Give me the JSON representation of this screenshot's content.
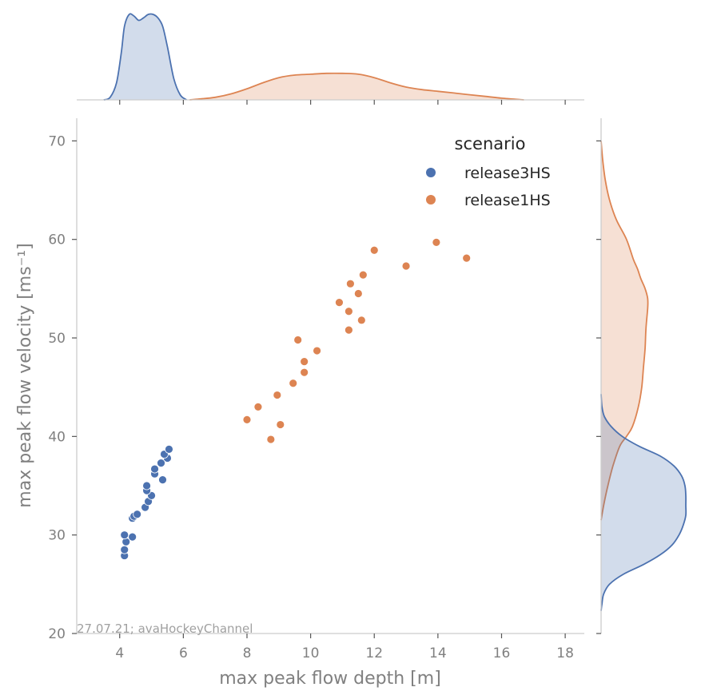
{
  "chart_data": {
    "type": "scatter",
    "xlabel": "max peak flow depth [m]",
    "ylabel": "max peak flow velocity [ms⁻¹]",
    "xlim": [
      2.65,
      18.6
    ],
    "ylim": [
      20,
      72.3
    ],
    "xticks": [
      "4",
      "6",
      "8",
      "10",
      "12",
      "14",
      "16",
      "18"
    ],
    "yticks": [
      "20",
      "30",
      "40",
      "50",
      "60",
      "70"
    ],
    "legend": {
      "title": "scenario",
      "position": "top-right"
    },
    "annotation": "27.07.21; avaHockeyChannel",
    "series": [
      {
        "name": "release3HS",
        "color": "#4c72b0",
        "points": [
          [
            4.15,
            27.9
          ],
          [
            4.15,
            28.5
          ],
          [
            4.2,
            29.3
          ],
          [
            4.15,
            30.0
          ],
          [
            4.4,
            29.8
          ],
          [
            4.4,
            31.7
          ],
          [
            4.45,
            31.9
          ],
          [
            4.55,
            32.1
          ],
          [
            4.8,
            32.8
          ],
          [
            4.9,
            33.4
          ],
          [
            5.0,
            34.0
          ],
          [
            4.85,
            34.5
          ],
          [
            4.85,
            35.0
          ],
          [
            5.35,
            35.6
          ],
          [
            5.1,
            36.2
          ],
          [
            5.1,
            36.7
          ],
          [
            5.3,
            37.3
          ],
          [
            5.5,
            37.8
          ],
          [
            5.4,
            38.2
          ],
          [
            5.55,
            38.7
          ]
        ]
      },
      {
        "name": "release1HS",
        "color": "#dd8452",
        "points": [
          [
            8.0,
            41.7
          ],
          [
            8.35,
            43.0
          ],
          [
            8.75,
            39.7
          ],
          [
            9.05,
            41.2
          ],
          [
            8.95,
            44.2
          ],
          [
            9.45,
            45.4
          ],
          [
            9.8,
            46.5
          ],
          [
            9.8,
            47.6
          ],
          [
            9.6,
            49.8
          ],
          [
            10.2,
            48.7
          ],
          [
            11.2,
            50.8
          ],
          [
            11.6,
            51.8
          ],
          [
            11.2,
            52.7
          ],
          [
            10.9,
            53.6
          ],
          [
            11.5,
            54.5
          ],
          [
            11.25,
            55.5
          ],
          [
            11.65,
            56.4
          ],
          [
            12.0,
            58.9
          ],
          [
            13.0,
            57.3
          ],
          [
            13.95,
            59.7
          ],
          [
            14.9,
            58.1
          ]
        ]
      }
    ],
    "marginal_x": {
      "series": [
        {
          "name": "release3HS",
          "x": [
            3.5,
            3.7,
            3.9,
            4.05,
            4.15,
            4.3,
            4.45,
            4.6,
            4.75,
            4.9,
            5.05,
            5.2,
            5.35,
            5.5,
            5.7,
            5.9,
            6.1
          ],
          "density": [
            0.0,
            0.03,
            0.2,
            0.55,
            0.86,
            1.0,
            0.98,
            0.93,
            0.96,
            1.0,
            1.0,
            0.96,
            0.86,
            0.62,
            0.25,
            0.06,
            0.0
          ]
        },
        {
          "name": "release1HS",
          "x": [
            6.2,
            6.5,
            7.0,
            7.5,
            8.0,
            8.5,
            9.0,
            9.5,
            10.0,
            10.5,
            11.0,
            11.5,
            12.0,
            12.5,
            13.0,
            13.5,
            14.0,
            14.5,
            15.0,
            15.5,
            16.0,
            16.7
          ],
          "density": [
            0.0,
            0.01,
            0.03,
            0.07,
            0.13,
            0.2,
            0.26,
            0.29,
            0.3,
            0.31,
            0.31,
            0.3,
            0.26,
            0.2,
            0.15,
            0.12,
            0.1,
            0.08,
            0.06,
            0.04,
            0.02,
            0.0
          ]
        }
      ]
    },
    "marginal_y": {
      "series": [
        {
          "name": "release1HS",
          "y": [
            31.5,
            33,
            35,
            37,
            39,
            40,
            41,
            43,
            45,
            47,
            49,
            51,
            53,
            54,
            55,
            56,
            57,
            58,
            60,
            62,
            64,
            66,
            68,
            70
          ],
          "density": [
            0.0,
            0.03,
            0.08,
            0.14,
            0.22,
            0.3,
            0.37,
            0.44,
            0.48,
            0.5,
            0.52,
            0.53,
            0.55,
            0.55,
            0.52,
            0.47,
            0.43,
            0.38,
            0.3,
            0.18,
            0.1,
            0.05,
            0.02,
            0.0
          ]
        },
        {
          "name": "release3HS",
          "y": [
            22.3,
            23,
            24,
            25,
            26,
            27,
            28,
            29,
            30,
            31,
            32,
            33,
            34,
            35,
            36,
            37,
            38,
            39,
            40,
            41,
            42,
            43,
            44.3
          ],
          "density": [
            0.0,
            0.01,
            0.03,
            0.1,
            0.26,
            0.5,
            0.7,
            0.84,
            0.92,
            0.97,
            1.0,
            1.0,
            1.0,
            0.99,
            0.95,
            0.86,
            0.7,
            0.45,
            0.25,
            0.12,
            0.04,
            0.01,
            0.0
          ]
        }
      ]
    }
  }
}
